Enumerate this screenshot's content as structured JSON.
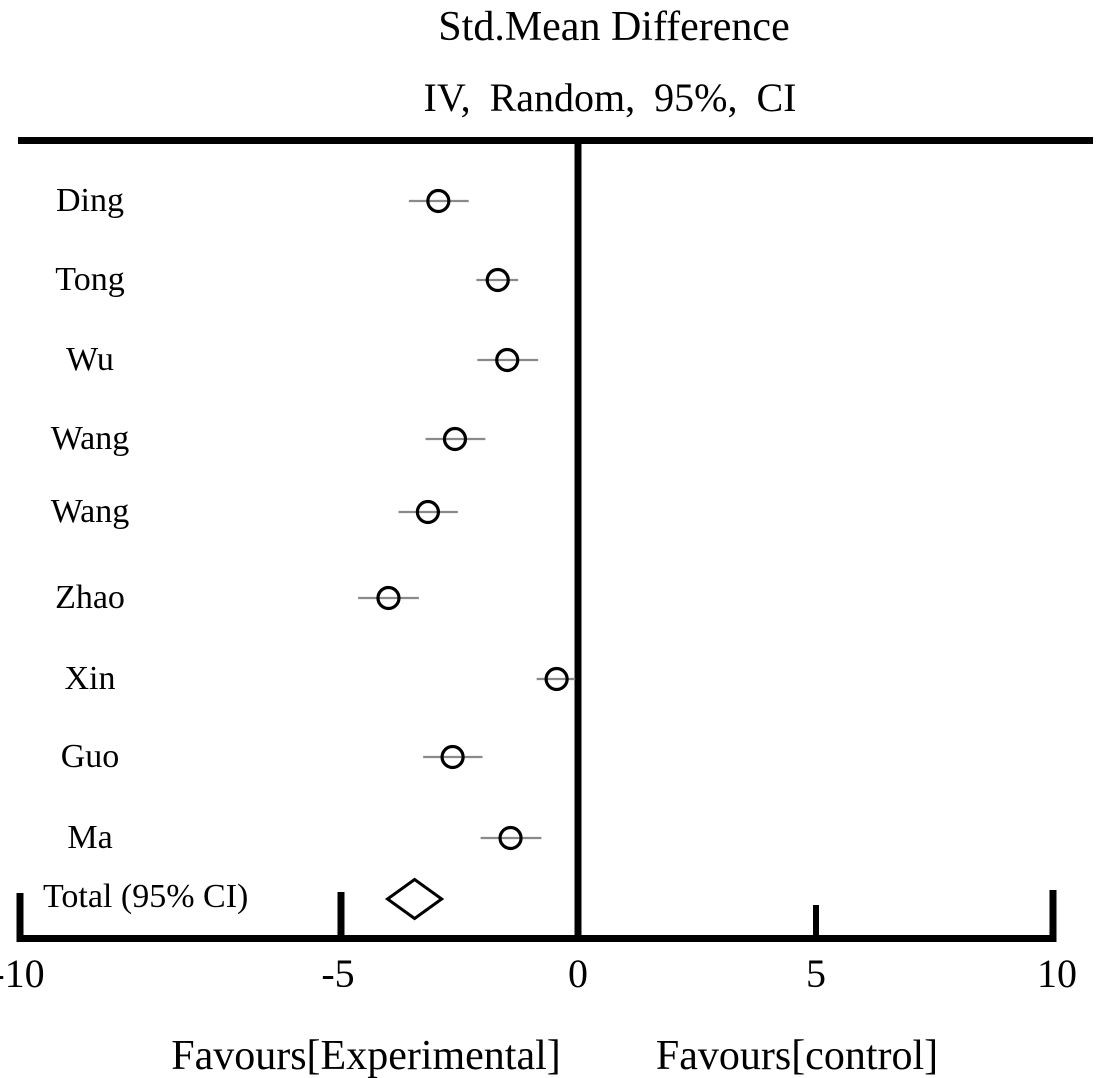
{
  "chart_data": {
    "type": "forest",
    "title": "Std.Mean Difference",
    "subtitle": "IV, Random, 95%, CI",
    "effect_measure": "Std. Mean Difference",
    "model": "IV, Random, 95% CI",
    "studies": [
      {
        "name": "Ding",
        "est": -2.94,
        "lo": -3.56,
        "hi": -2.3
      },
      {
        "name": "Tong",
        "est": -1.69,
        "lo": -2.14,
        "hi": -1.26
      },
      {
        "name": "Wu",
        "est": -1.49,
        "lo": -2.12,
        "hi": -0.84
      },
      {
        "name": "Wang",
        "est": -2.59,
        "lo": -3.21,
        "hi": -1.95
      },
      {
        "name": "Wang",
        "est": -3.16,
        "lo": -3.78,
        "hi": -2.53
      },
      {
        "name": "Zhao",
        "est": -3.99,
        "lo": -4.63,
        "hi": -3.35
      },
      {
        "name": "Xin",
        "est": -0.45,
        "lo": -0.87,
        "hi": -0.06
      },
      {
        "name": "Guo",
        "est": -2.64,
        "lo": -3.26,
        "hi": -2.01
      },
      {
        "name": "Ma",
        "est": -1.42,
        "lo": -2.05,
        "hi": -0.77
      }
    ],
    "total": {
      "label": "Total (95% CI)",
      "est": -3.44,
      "lo": -4.01,
      "hi": -2.87
    },
    "x_axis": {
      "ticks": [
        -10,
        -5,
        0,
        5,
        10
      ],
      "tick_labels": [
        "-10",
        "-5",
        "0",
        "5",
        "10"
      ],
      "xlim": [
        -10,
        10
      ],
      "zero_line": 0,
      "grid": false
    },
    "footer": {
      "left": "Favours[Experimental]",
      "right": "Favours[control]"
    },
    "colors": {
      "axis": "#000000",
      "ci_line": "#8a8a8a",
      "marker_stroke": "#000000",
      "diamond_fill": "#ffffff"
    }
  }
}
